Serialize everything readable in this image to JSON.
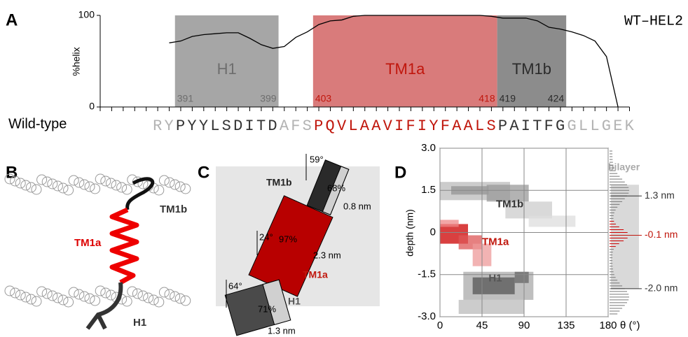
{
  "panel_labels": [
    "A",
    "B",
    "C",
    "D"
  ],
  "panel_a": {
    "name": "WT–HEL2",
    "row_label": "Wild-type",
    "sequence": [
      {
        "text": "RY",
        "color": "#b3b3b3"
      },
      {
        "text": "PYYLSDITD",
        "color": "#333333"
      },
      {
        "text": "AFS",
        "color": "#b3b3b3"
      },
      {
        "text": "PQVLAAVIFIYFAALS",
        "color": "#c0160c"
      },
      {
        "text": "PAITFG",
        "color": "#333333"
      },
      {
        "text": "GLLGEK",
        "color": "#b3b3b3"
      }
    ],
    "regions": [
      {
        "name": "H1",
        "start": 391,
        "end": 399,
        "color": "#a6a6a6",
        "text_color": "#6e6e6e"
      },
      {
        "name": "TM1a",
        "start": 403,
        "end": 418,
        "color": "#d97b7b",
        "text_color": "#c0160c"
      },
      {
        "name": "TM1b",
        "start": 419,
        "end": 424,
        "color": "#8c8c8c",
        "text_color": "#2b2b2b"
      }
    ]
  },
  "panel_b": {
    "tm1b": "TM1b",
    "tm1a": "TM1a",
    "h1": "H1"
  },
  "panel_c": {
    "tm1b": {
      "name": "TM1b",
      "angle": "59°",
      "fraction": "68%",
      "depth": "0.8 nm"
    },
    "tm1a": {
      "name": "TM1a",
      "angle": "24°",
      "fraction": "97%",
      "depth": "2.3 nm"
    },
    "h1": {
      "name": "H1",
      "angle": "64°",
      "fraction": "71%",
      "depth": "1.3 nm"
    }
  },
  "chart_data": [
    {
      "type": "line",
      "ylabel": "%helix",
      "color": "#000000",
      "x": [
        390,
        391,
        392,
        393,
        394,
        395,
        396,
        397,
        398,
        399,
        400,
        401,
        402,
        403,
        404,
        405,
        406,
        407,
        408,
        409,
        410,
        411,
        412,
        413,
        414,
        415,
        416,
        417,
        418,
        419,
        420,
        421,
        422,
        423,
        424,
        425,
        426,
        427,
        428,
        429
      ],
      "values": [
        70,
        72,
        77,
        79,
        80,
        81,
        81,
        75,
        68,
        64,
        66,
        76,
        82,
        90,
        94,
        95,
        99,
        100,
        100,
        100,
        100,
        100,
        100,
        100,
        100,
        100,
        100,
        100,
        99,
        97,
        97,
        97,
        94,
        87,
        85,
        82,
        78,
        72,
        55,
        0
      ],
      "xlim": [
        384,
        430
      ],
      "ylim": [
        0,
        100
      ],
      "yticks": [
        0,
        100
      ]
    },
    {
      "type": "heatmap",
      "xlabel": "θ (°)",
      "ylabel": "depth (nm)",
      "xlim": [
        0,
        180
      ],
      "ylim": [
        -3,
        3
      ],
      "xticks": [
        0,
        45,
        90,
        135,
        180
      ],
      "yticks": [
        {
          "value": -3,
          "label": "-3.0"
        },
        {
          "value": -1.5,
          "label": "-1.5"
        },
        0,
        {
          "value": 1.5,
          "label": "1.5"
        },
        {
          "value": 3,
          "label": "3.0"
        }
      ],
      "grid": true,
      "bilayer_label": "bilayer",
      "annotations": [
        {
          "text": "TM1b",
          "x": 60,
          "y": 1.0,
          "color": "#333333"
        },
        {
          "text": "TM1a",
          "x": 45,
          "y": -0.35,
          "color": "#c0160c"
        },
        {
          "text": "H1",
          "x": 52,
          "y": -1.65,
          "color": "#555555"
        }
      ],
      "depth_markers": [
        {
          "text": "1.3 nm",
          "y": 1.3,
          "color": "#333333"
        },
        {
          "text": "-0.1 nm",
          "y": -0.1,
          "color": "#c0160c"
        },
        {
          "text": "-2.0 nm",
          "y": -2.0,
          "color": "#333333"
        }
      ]
    }
  ]
}
